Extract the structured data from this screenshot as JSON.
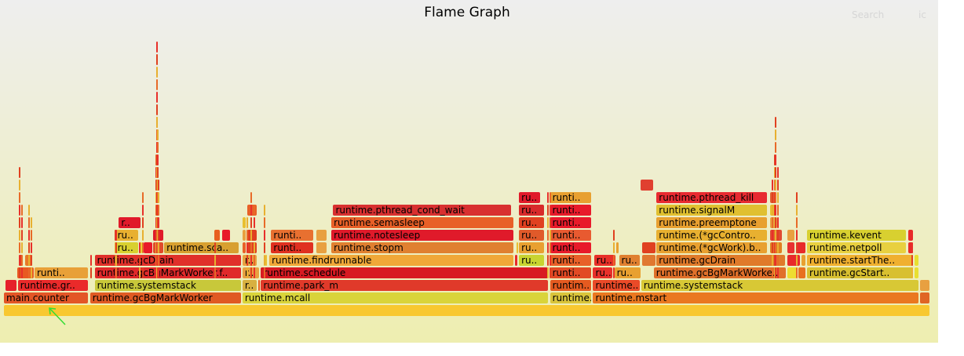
{
  "chart_data": {
    "type": "flame-graph",
    "title": "Flame Graph",
    "toolbar": {
      "search_label": "Search",
      "ic_label": "ic"
    },
    "frames": [
      {
        "name": "",
        "x0": 0.0,
        "x1": 1.0,
        "depth": 0,
        "color": "#f8c830"
      },
      {
        "name": "main.counter",
        "x0": 0.0,
        "x1": 0.0915,
        "depth": 1,
        "color": "#e35626"
      },
      {
        "name": "runtime.gcBgMarkWorker",
        "x0": 0.093,
        "x1": 0.2565,
        "depth": 1,
        "color": "#e05a23"
      },
      {
        "name": "runtime.mcall",
        "x0": 0.2575,
        "x1": 0.5885,
        "depth": 1,
        "color": "#d9d43a"
      },
      {
        "name": "runtime..",
        "x0": 0.5895,
        "x1": 0.635,
        "depth": 1,
        "color": "#d9c43a"
      },
      {
        "name": "runtime.mstart",
        "x0": 0.636,
        "x1": 0.988,
        "depth": 1,
        "color": "#ea7820"
      },
      {
        "name": "",
        "x0": 0.989,
        "x1": 1.0,
        "depth": 1,
        "color": "#e06525"
      },
      {
        "name": "",
        "x0": 0.002,
        "x1": 0.014,
        "depth": 2,
        "color": "#e6202a"
      },
      {
        "name": "runtime.gr..",
        "x0": 0.015,
        "x1": 0.0915,
        "depth": 2,
        "color": "#ea2a2a"
      },
      {
        "name": "runtime.systemstack",
        "x0": 0.098,
        "x1": 0.2565,
        "depth": 2,
        "color": "#c8c83a"
      },
      {
        "name": "r..",
        "x0": 0.2575,
        "x1": 0.274,
        "depth": 2,
        "color": "#d8b040"
      },
      {
        "name": "",
        "x0": 0.2745,
        "x1": 0.2765,
        "depth": 2,
        "color": "#ea6020"
      },
      {
        "name": "runtime.park_m",
        "x0": 0.2775,
        "x1": 0.5885,
        "depth": 2,
        "color": "#e03a2a"
      },
      {
        "name": "runtim..",
        "x0": 0.5895,
        "x1": 0.635,
        "depth": 2,
        "color": "#e45a20"
      },
      {
        "name": "runtime..",
        "x0": 0.636,
        "x1": 0.687,
        "depth": 2,
        "color": "#ea4a28"
      },
      {
        "name": "runtime.systemstack",
        "x0": 0.688,
        "x1": 0.988,
        "depth": 2,
        "color": "#d8c835"
      },
      {
        "name": "",
        "x0": 0.989,
        "x1": 1.0,
        "depth": 2,
        "color": "#e8a040"
      },
      {
        "name": "",
        "x0": 0.014,
        "x1": 0.033,
        "depth": 3,
        "color": "#e85a22"
      },
      {
        "name": "runti..",
        "x0": 0.033,
        "x1": 0.0915,
        "depth": 3,
        "color": "#e8a038"
      },
      {
        "name": "runtime.gcBgMarkWorker.f..",
        "x0": 0.098,
        "x1": 0.2565,
        "depth": 3,
        "color": "#e02a2a"
      },
      {
        "name": "r..",
        "x0": 0.2575,
        "x1": 0.2765,
        "depth": 3,
        "color": "#e8a040"
      },
      {
        "name": "runtime.schedule",
        "x0": 0.2775,
        "x1": 0.5885,
        "depth": 3,
        "color": "#d81a22"
      },
      {
        "name": "runti..",
        "x0": 0.5895,
        "x1": 0.635,
        "depth": 3,
        "color": "#e24a24"
      },
      {
        "name": "ru..",
        "x0": 0.636,
        "x1": 0.658,
        "depth": 3,
        "color": "#e8302a"
      },
      {
        "name": "ru..",
        "x0": 0.659,
        "x1": 0.688,
        "depth": 3,
        "color": "#e8a030"
      },
      {
        "name": "runtime.gcBgMarkWorke..",
        "x0": 0.7015,
        "x1": 0.8445,
        "depth": 3,
        "color": "#e0702a"
      },
      {
        "name": "",
        "x0": 0.8455,
        "x1": 0.857,
        "depth": 3,
        "color": "#eedd30"
      },
      {
        "name": "",
        "x0": 0.858,
        "x1": 0.866,
        "depth": 3,
        "color": "#e87020"
      },
      {
        "name": "runtime.gcStart..",
        "x0": 0.867,
        "x1": 0.982,
        "depth": 3,
        "color": "#d8c030"
      },
      {
        "name": "",
        "x0": 0.983,
        "x1": 0.988,
        "depth": 3,
        "color": "#e8e030"
      },
      {
        "name": "",
        "x0": 0.016,
        "x1": 0.021,
        "depth": 4,
        "color": "#e04020"
      },
      {
        "name": "",
        "x0": 0.023,
        "x1": 0.031,
        "depth": 4,
        "color": "#e87828"
      },
      {
        "name": "runtime.gcDrain",
        "x0": 0.098,
        "x1": 0.2565,
        "depth": 4,
        "color": "#e0302a"
      },
      {
        "name": "r..",
        "x0": 0.2575,
        "x1": 0.274,
        "depth": 4,
        "color": "#e8a040"
      },
      {
        "name": "",
        "x0": 0.282,
        "x1": 0.285,
        "depth": 4,
        "color": "#e8c030"
      },
      {
        "name": "runtime.findrunnable",
        "x0": 0.2865,
        "x1": 0.551,
        "depth": 4,
        "color": "#f0a838"
      },
      {
        "name": "",
        "x0": 0.552,
        "x1": 0.555,
        "depth": 4,
        "color": "#e82a2a"
      },
      {
        "name": "ru..",
        "x0": 0.556,
        "x1": 0.584,
        "depth": 4,
        "color": "#c8d430"
      },
      {
        "name": "runti..",
        "x0": 0.5895,
        "x1": 0.635,
        "depth": 4,
        "color": "#e86028"
      },
      {
        "name": "ru..",
        "x0": 0.637,
        "x1": 0.661,
        "depth": 4,
        "color": "#e83028"
      },
      {
        "name": "ru..",
        "x0": 0.664,
        "x1": 0.687,
        "depth": 4,
        "color": "#e08030"
      },
      {
        "name": "",
        "x0": 0.689,
        "x1": 0.704,
        "depth": 4,
        "color": "#e07830"
      },
      {
        "name": "runtime.gcDrain",
        "x0": 0.7045,
        "x1": 0.8445,
        "depth": 4,
        "color": "#e07a2a"
      },
      {
        "name": "",
        "x0": 0.8455,
        "x1": 0.86,
        "depth": 4,
        "color": "#e82a2a"
      },
      {
        "name": "",
        "x0": 0.861,
        "x1": 0.866,
        "depth": 4,
        "color": "#e8a030"
      },
      {
        "name": "runtime.startThe..",
        "x0": 0.867,
        "x1": 0.982,
        "depth": 4,
        "color": "#f0b030"
      },
      {
        "name": "",
        "x0": 0.983,
        "x1": 0.988,
        "depth": 4,
        "color": "#e8e030"
      },
      {
        "name": "ru..",
        "x0": 0.12,
        "x1": 0.146,
        "depth": 5,
        "color": "#d8d030"
      },
      {
        "name": "",
        "x0": 0.147,
        "x1": 0.15,
        "depth": 5,
        "color": "#e8d030"
      },
      {
        "name": "",
        "x0": 0.151,
        "x1": 0.161,
        "depth": 5,
        "color": "#e81a2a"
      },
      {
        "name": "",
        "x0": 0.161,
        "x1": 0.173,
        "depth": 5,
        "color": "#e04a2a"
      },
      {
        "name": "runtime.sca..",
        "x0": 0.173,
        "x1": 0.254,
        "depth": 5,
        "color": "#d8a030"
      },
      {
        "name": "",
        "x0": 0.2575,
        "x1": 0.262,
        "depth": 5,
        "color": "#e86028"
      },
      {
        "name": "",
        "x0": 0.263,
        "x1": 0.274,
        "depth": 5,
        "color": "#e04020"
      },
      {
        "name": "runti..",
        "x0": 0.2885,
        "x1": 0.335,
        "depth": 5,
        "color": "#e03020"
      },
      {
        "name": "",
        "x0": 0.337,
        "x1": 0.349,
        "depth": 5,
        "color": "#e8a040"
      },
      {
        "name": "runtime.stopm",
        "x0": 0.3535,
        "x1": 0.551,
        "depth": 5,
        "color": "#e08030"
      },
      {
        "name": "",
        "x0": 0.553,
        "x1": 0.555,
        "depth": 5,
        "color": "#e8c030"
      },
      {
        "name": "ru..",
        "x0": 0.556,
        "x1": 0.584,
        "depth": 5,
        "color": "#e8a030"
      },
      {
        "name": "runti..",
        "x0": 0.5895,
        "x1": 0.635,
        "depth": 5,
        "color": "#e81a2a"
      },
      {
        "name": "",
        "x0": 0.661,
        "x1": 0.664,
        "depth": 5,
        "color": "#e8a030"
      },
      {
        "name": "",
        "x0": 0.689,
        "x1": 0.704,
        "depth": 5,
        "color": "#e04020"
      },
      {
        "name": "runtime.(*gcWork).b..",
        "x0": 0.7045,
        "x1": 0.8245,
        "depth": 5,
        "color": "#e8a030"
      },
      {
        "name": "",
        "x0": 0.827,
        "x1": 0.841,
        "depth": 5,
        "color": "#e08020"
      },
      {
        "name": "",
        "x0": 0.8455,
        "x1": 0.854,
        "depth": 5,
        "color": "#e83030"
      },
      {
        "name": "",
        "x0": 0.855,
        "x1": 0.866,
        "depth": 5,
        "color": "#e82a2a"
      },
      {
        "name": "runtime.netpoll",
        "x0": 0.867,
        "x1": 0.975,
        "depth": 5,
        "color": "#e8d040"
      },
      {
        "name": "",
        "x0": 0.976,
        "x1": 0.982,
        "depth": 5,
        "color": "#e82a2a"
      },
      {
        "name": "ru..",
        "x0": 0.12,
        "x1": 0.146,
        "depth": 6,
        "color": "#e8b030"
      },
      {
        "name": "",
        "x0": 0.161,
        "x1": 0.173,
        "depth": 6,
        "color": "#e01a2a"
      },
      {
        "name": "",
        "x0": 0.227,
        "x1": 0.234,
        "depth": 6,
        "color": "#e86020"
      },
      {
        "name": "",
        "x0": 0.236,
        "x1": 0.245,
        "depth": 6,
        "color": "#e81a2a"
      },
      {
        "name": "",
        "x0": 0.2575,
        "x1": 0.262,
        "depth": 6,
        "color": "#e8a040"
      },
      {
        "name": "",
        "x0": 0.263,
        "x1": 0.274,
        "depth": 6,
        "color": "#e04020"
      },
      {
        "name": "runti..",
        "x0": 0.2885,
        "x1": 0.335,
        "depth": 6,
        "color": "#e87030"
      },
      {
        "name": "",
        "x0": 0.337,
        "x1": 0.349,
        "depth": 6,
        "color": "#e8a040"
      },
      {
        "name": "runtime.notesleep",
        "x0": 0.3535,
        "x1": 0.551,
        "depth": 6,
        "color": "#e01a2a"
      },
      {
        "name": "ru..",
        "x0": 0.556,
        "x1": 0.584,
        "depth": 6,
        "color": "#e05a2a"
      },
      {
        "name": "runti..",
        "x0": 0.5895,
        "x1": 0.635,
        "depth": 6,
        "color": "#e85a30"
      },
      {
        "name": "runtime.(*gcContro..",
        "x0": 0.7045,
        "x1": 0.8245,
        "depth": 6,
        "color": "#e8b030"
      },
      {
        "name": "",
        "x0": 0.827,
        "x1": 0.841,
        "depth": 6,
        "color": "#e04a30"
      },
      {
        "name": "",
        "x0": 0.8455,
        "x1": 0.854,
        "depth": 6,
        "color": "#e8a040"
      },
      {
        "name": "runtime.kevent",
        "x0": 0.867,
        "x1": 0.975,
        "depth": 6,
        "color": "#d8d030"
      },
      {
        "name": "",
        "x0": 0.976,
        "x1": 0.982,
        "depth": 6,
        "color": "#e82a2a"
      },
      {
        "name": "r..",
        "x0": 0.124,
        "x1": 0.148,
        "depth": 7,
        "color": "#e01a2a"
      },
      {
        "name": "",
        "x0": 0.2575,
        "x1": 0.262,
        "depth": 7,
        "color": "#e8c030"
      },
      {
        "name": "runtime.semasleep",
        "x0": 0.3535,
        "x1": 0.551,
        "depth": 7,
        "color": "#e86028"
      },
      {
        "name": "ru..",
        "x0": 0.556,
        "x1": 0.584,
        "depth": 7,
        "color": "#e04020"
      },
      {
        "name": "runti..",
        "x0": 0.5895,
        "x1": 0.635,
        "depth": 7,
        "color": "#e81a2a"
      },
      {
        "name": "runtime.preemptone",
        "x0": 0.7045,
        "x1": 0.8245,
        "depth": 7,
        "color": "#e8a030"
      },
      {
        "name": "",
        "x0": 0.827,
        "x1": 0.836,
        "depth": 7,
        "color": "#e8a040"
      },
      {
        "name": "",
        "x0": 0.263,
        "x1": 0.274,
        "depth": 8,
        "color": "#e86028"
      },
      {
        "name": "runtime.pthread_cond_wait",
        "x0": 0.3555,
        "x1": 0.548,
        "depth": 8,
        "color": "#d83030"
      },
      {
        "name": "ru..",
        "x0": 0.556,
        "x1": 0.584,
        "depth": 8,
        "color": "#d82a2a"
      },
      {
        "name": "runti..",
        "x0": 0.5895,
        "x1": 0.635,
        "depth": 8,
        "color": "#e81a2a"
      },
      {
        "name": "runtime.signalM",
        "x0": 0.7045,
        "x1": 0.8245,
        "depth": 8,
        "color": "#e0c030"
      },
      {
        "name": "",
        "x0": 0.827,
        "x1": 0.834,
        "depth": 8,
        "color": "#e8c030"
      },
      {
        "name": "ru..",
        "x0": 0.556,
        "x1": 0.58,
        "depth": 9,
        "color": "#e01a2a"
      },
      {
        "name": "runti..",
        "x0": 0.5895,
        "x1": 0.635,
        "depth": 9,
        "color": "#e8a030"
      },
      {
        "name": "runtime.pthread_kill",
        "x0": 0.7045,
        "x1": 0.8245,
        "depth": 9,
        "color": "#e82a30"
      },
      {
        "name": "",
        "x0": 0.827,
        "x1": 0.834,
        "depth": 9,
        "color": "#e06030"
      },
      {
        "name": "",
        "x0": 0.6875,
        "x1": 0.7015,
        "depth": 10,
        "color": "#e04030"
      }
    ],
    "spikes": [
      {
        "x": 0.0165,
        "top": 11
      },
      {
        "x": 0.019,
        "top": 8
      },
      {
        "x": 0.0265,
        "top": 8
      },
      {
        "x": 0.029,
        "top": 7
      },
      {
        "x": 0.0935,
        "top": 4
      },
      {
        "x": 0.1195,
        "top": 6
      },
      {
        "x": 0.1205,
        "top": 6
      },
      {
        "x": 0.1455,
        "top": 5
      },
      {
        "x": 0.1495,
        "top": 9
      },
      {
        "x": 0.1635,
        "top": 12
      },
      {
        "x": 0.164,
        "top": 15
      },
      {
        "x": 0.1645,
        "top": 21
      },
      {
        "x": 0.1655,
        "top": 14
      },
      {
        "x": 0.1665,
        "top": 10
      },
      {
        "x": 0.2275,
        "top": 5
      },
      {
        "x": 0.2615,
        "top": 7
      },
      {
        "x": 0.2665,
        "top": 9
      },
      {
        "x": 0.2695,
        "top": 8
      },
      {
        "x": 0.2805,
        "top": 8
      },
      {
        "x": 0.5865,
        "top": 9
      },
      {
        "x": 0.589,
        "top": 9
      },
      {
        "x": 0.6575,
        "top": 6
      },
      {
        "x": 0.8285,
        "top": 10
      },
      {
        "x": 0.8315,
        "top": 12
      },
      {
        "x": 0.8325,
        "top": 15
      },
      {
        "x": 0.8345,
        "top": 11
      },
      {
        "x": 0.8555,
        "top": 9
      },
      {
        "x": 0.9795,
        "top": 5
      }
    ]
  }
}
